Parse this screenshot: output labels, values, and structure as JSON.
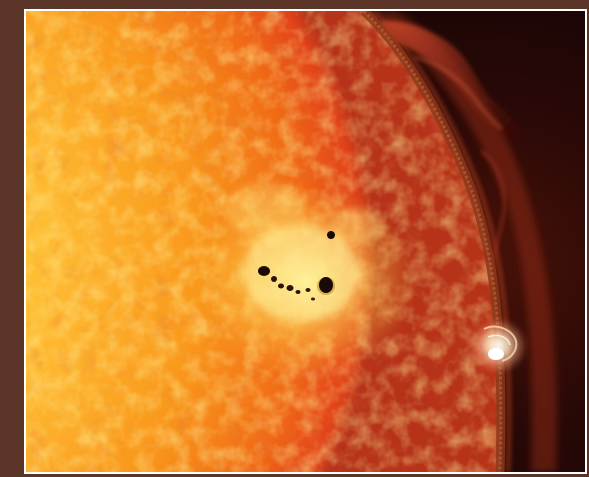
{
  "image": {
    "subject": "solar-surface-photograph",
    "features": [
      "sunspot-group",
      "solar-limb",
      "solar-prominence",
      "solar-flare"
    ]
  },
  "colors": {
    "frame": "#5b3527",
    "border": "#ffffff",
    "space": "#1a0606",
    "limb": "#7a2a10",
    "photosphere_core": "#ffd64a",
    "photosphere_mid": "#f89a1a",
    "photosphere_edge": "#e84414",
    "sunspot": "#1a0a05",
    "flare": "#fffbe6"
  }
}
